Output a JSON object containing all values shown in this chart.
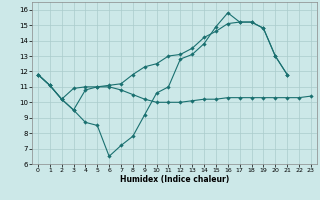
{
  "xlabel": "Humidex (Indice chaleur)",
  "bg_color": "#cce8e8",
  "grid_color": "#aacccc",
  "line_color": "#1a7070",
  "xlim": [
    -0.5,
    23.5
  ],
  "ylim": [
    6,
    16.5
  ],
  "x_ticks": [
    0,
    1,
    2,
    3,
    4,
    5,
    6,
    7,
    8,
    9,
    10,
    11,
    12,
    13,
    14,
    15,
    16,
    17,
    18,
    19,
    20,
    21,
    22,
    23
  ],
  "y_ticks": [
    6,
    7,
    8,
    9,
    10,
    11,
    12,
    13,
    14,
    15,
    16
  ],
  "line1_y": [
    11.8,
    11.1,
    10.2,
    9.5,
    10.8,
    11.0,
    11.0,
    10.8,
    10.5,
    10.2,
    10.0,
    10.0,
    10.0,
    10.1,
    10.2,
    10.2,
    10.3,
    10.3,
    10.3,
    10.3,
    10.3,
    10.3,
    10.3,
    10.4
  ],
  "line2_y": [
    11.8,
    11.1,
    10.2,
    9.5,
    8.7,
    8.5,
    6.5,
    7.2,
    7.8,
    9.2,
    10.6,
    11.0,
    12.8,
    13.1,
    13.8,
    14.9,
    15.8,
    15.2,
    15.2,
    14.8,
    13.0,
    11.8,
    null,
    null
  ],
  "line3_y": [
    11.8,
    11.1,
    10.2,
    10.9,
    11.0,
    11.0,
    11.1,
    11.2,
    11.8,
    12.3,
    12.5,
    13.0,
    13.1,
    13.5,
    14.2,
    14.6,
    15.1,
    15.2,
    15.2,
    14.8,
    13.0,
    11.8,
    null,
    null
  ]
}
